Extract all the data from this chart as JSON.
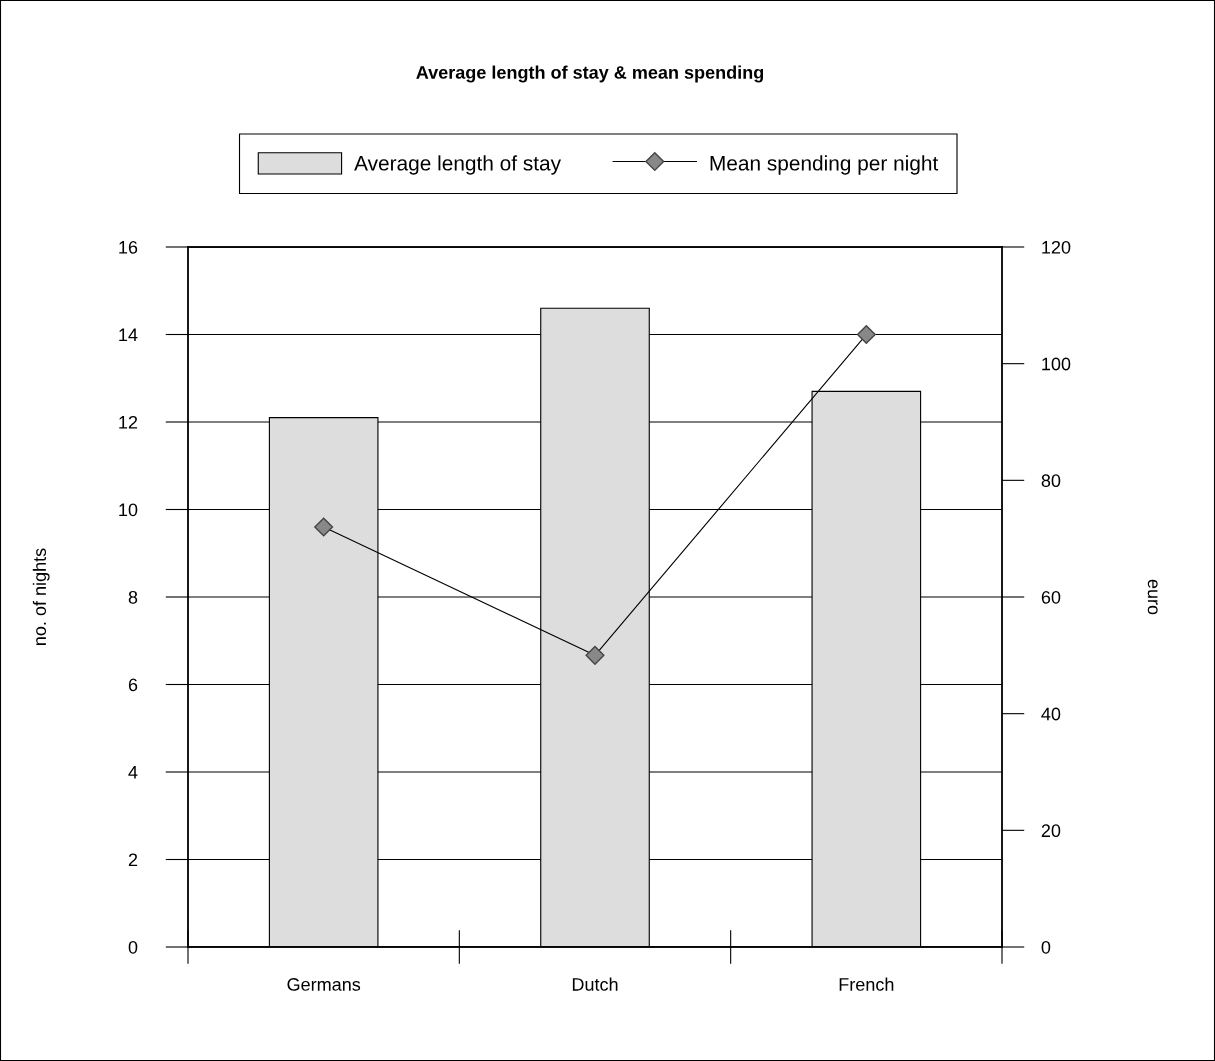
{
  "chart_data": {
    "type": "bar",
    "title": "Average length of stay & mean spending",
    "categories": [
      "Germans",
      "Dutch",
      "French"
    ],
    "series": [
      {
        "name": "Average length of stay",
        "color": "#dddddd",
        "values": [
          12.1,
          14.6,
          12.7
        ]
      },
      {
        "name": "Mean spending per night",
        "type": "line",
        "axis": "y2",
        "color": "#888888",
        "marker": "diamond",
        "values": [
          72,
          50,
          105
        ]
      }
    ],
    "ylabel": "no. of nights",
    "y2label": "euro",
    "ylim": [
      0,
      16
    ],
    "yticks": [
      0,
      2,
      4,
      6,
      8,
      10,
      12,
      14,
      16
    ],
    "y2lim": [
      0,
      120
    ],
    "y2ticks": [
      0,
      20,
      40,
      60,
      80,
      100,
      120
    ],
    "grid": "y",
    "legend": "top"
  }
}
